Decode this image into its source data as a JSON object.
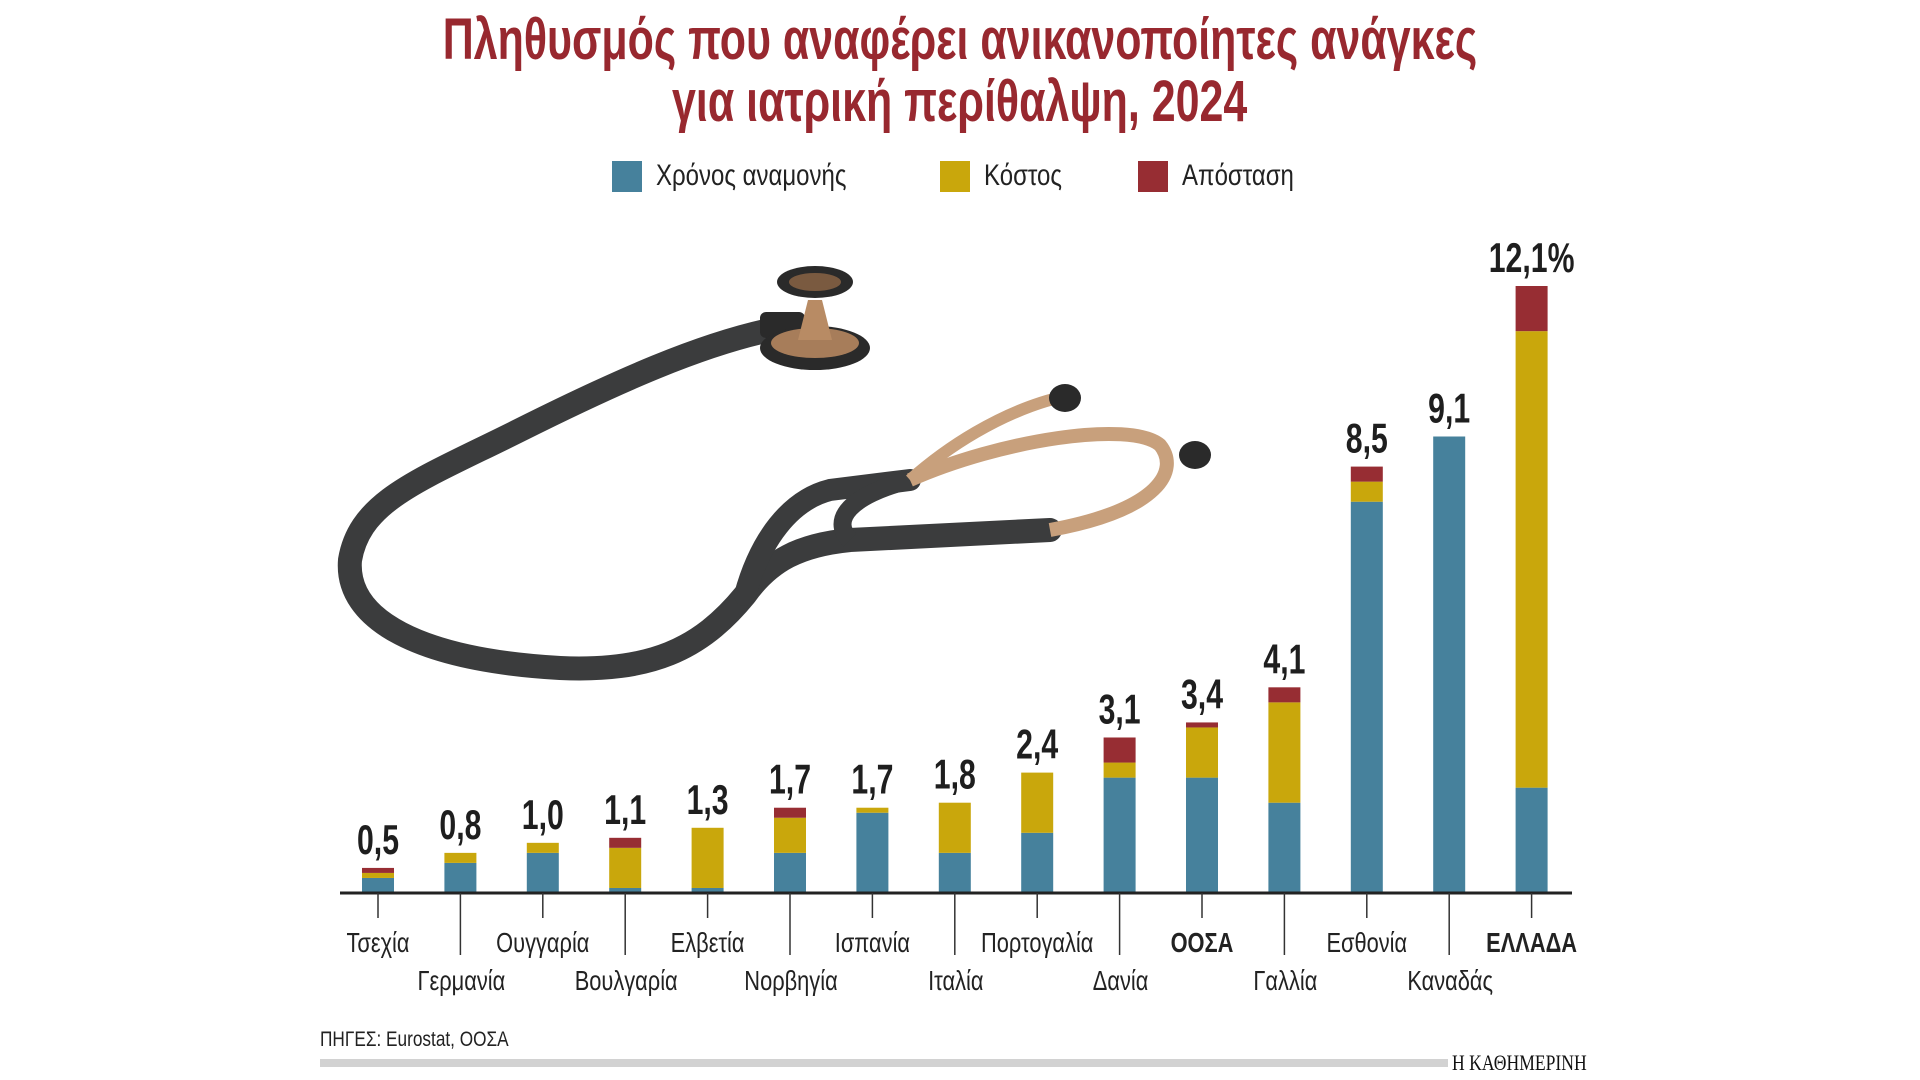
{
  "title_line1": "Πληθυσμός που αναφέρει ανικανοποίητες ανάγκες",
  "title_line2": "για ιατρική περίθαλψη, 2024",
  "source": "ΠΗΓΕΣ: Eurostat, ΟΟΣΑ",
  "brand": "Η ΚΑΘΗΜΕΡΙΝΗ",
  "colors": {
    "title": "#98282f",
    "waiting": "#46819c",
    "cost": "#c9a70c",
    "distance": "#972d33"
  },
  "chart_data": {
    "type": "bar",
    "stacked": true,
    "title": "Πληθυσμός που αναφέρει ανικανοποίητες ανάγκες για ιατρική περίθαλψη, 2024",
    "xlabel": "",
    "ylabel": "%",
    "ylim": [
      0,
      12.1
    ],
    "legend_position": "top-center",
    "categories": [
      "Τσεχία",
      "Γερμανία",
      "Ουγγαρία",
      "Βουλγαρία",
      "Ελβετία",
      "Νορβηγία",
      "Ισπανία",
      "Ιταλία",
      "Πορτογαλία",
      "Δανία",
      "ΟΟΣΑ",
      "Γαλλία",
      "Εσθονία",
      "Καναδάς",
      "ΕΛΛΑΔΑ"
    ],
    "bold_categories": [
      "ΟΟΣΑ",
      "ΕΛΛΑΔΑ"
    ],
    "totals": [
      0.5,
      0.8,
      1.0,
      1.1,
      1.3,
      1.7,
      1.7,
      1.8,
      2.4,
      3.1,
      3.4,
      4.1,
      8.5,
      9.1,
      12.1
    ],
    "total_labels": [
      "0,5",
      "0,8",
      "1,0",
      "1,1",
      "1,3",
      "1,7",
      "1,7",
      "1,8",
      "2,4",
      "3,1",
      "3,4",
      "4,1",
      "8,5",
      "9,1",
      "12,1%"
    ],
    "series": [
      {
        "name": "Χρόνος αναμονής",
        "values": [
          0.3,
          0.6,
          0.8,
          0.1,
          0.1,
          0.8,
          1.6,
          0.8,
          1.2,
          2.3,
          2.3,
          1.8,
          7.8,
          9.1,
          2.1
        ]
      },
      {
        "name": "Κόστος",
        "values": [
          0.1,
          0.2,
          0.2,
          0.8,
          1.2,
          0.7,
          0.1,
          1.0,
          1.2,
          0.3,
          1.0,
          2.0,
          0.4,
          0.0,
          9.1
        ]
      },
      {
        "name": "Απόσταση",
        "values": [
          0.1,
          0.0,
          0.0,
          0.2,
          0.0,
          0.2,
          0.0,
          0.0,
          0.0,
          0.5,
          0.1,
          0.3,
          0.3,
          0.0,
          0.9
        ]
      }
    ]
  }
}
